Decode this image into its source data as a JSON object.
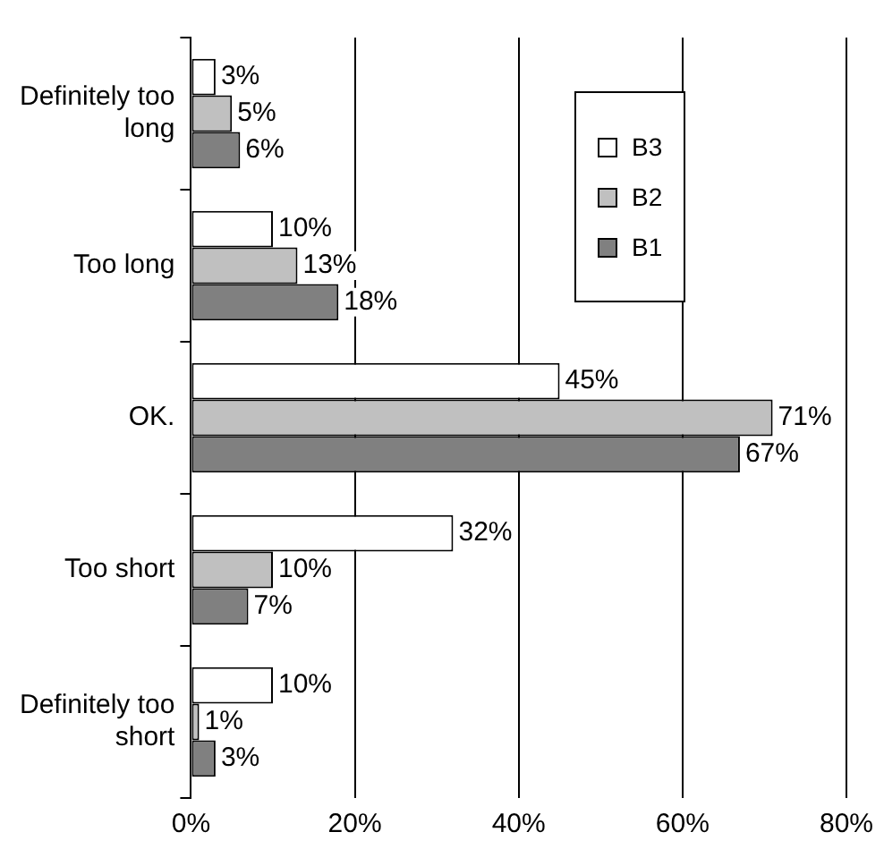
{
  "chart_data": {
    "type": "bar",
    "orientation": "horizontal",
    "categories": [
      "Definitely too long",
      "Too long",
      "OK.",
      "Too short",
      "Definitely too short"
    ],
    "series": [
      {
        "name": "B3",
        "color": "#ffffff",
        "values": [
          3,
          10,
          45,
          32,
          10
        ],
        "value_labels": [
          "3%",
          "10%",
          "45%",
          "32%",
          "10%"
        ]
      },
      {
        "name": "B2",
        "color": "#c0c0c0",
        "values": [
          5,
          13,
          71,
          10,
          1
        ],
        "value_labels": [
          "5%",
          "13%",
          "71%",
          "10%",
          "1%"
        ]
      },
      {
        "name": "B1",
        "color": "#808080",
        "values": [
          6,
          18,
          67,
          7,
          3
        ],
        "value_labels": [
          "6%",
          "18%",
          "67%",
          "7%",
          "3%"
        ]
      }
    ],
    "xlim": [
      0,
      80
    ],
    "xticks": [
      {
        "value": 0,
        "label": "0%"
      },
      {
        "value": 20,
        "label": "20%"
      },
      {
        "value": 40,
        "label": "40%"
      },
      {
        "value": 60,
        "label": "60%"
      },
      {
        "value": 80,
        "label": "80%"
      }
    ],
    "grid": "x",
    "legend": "top right"
  }
}
